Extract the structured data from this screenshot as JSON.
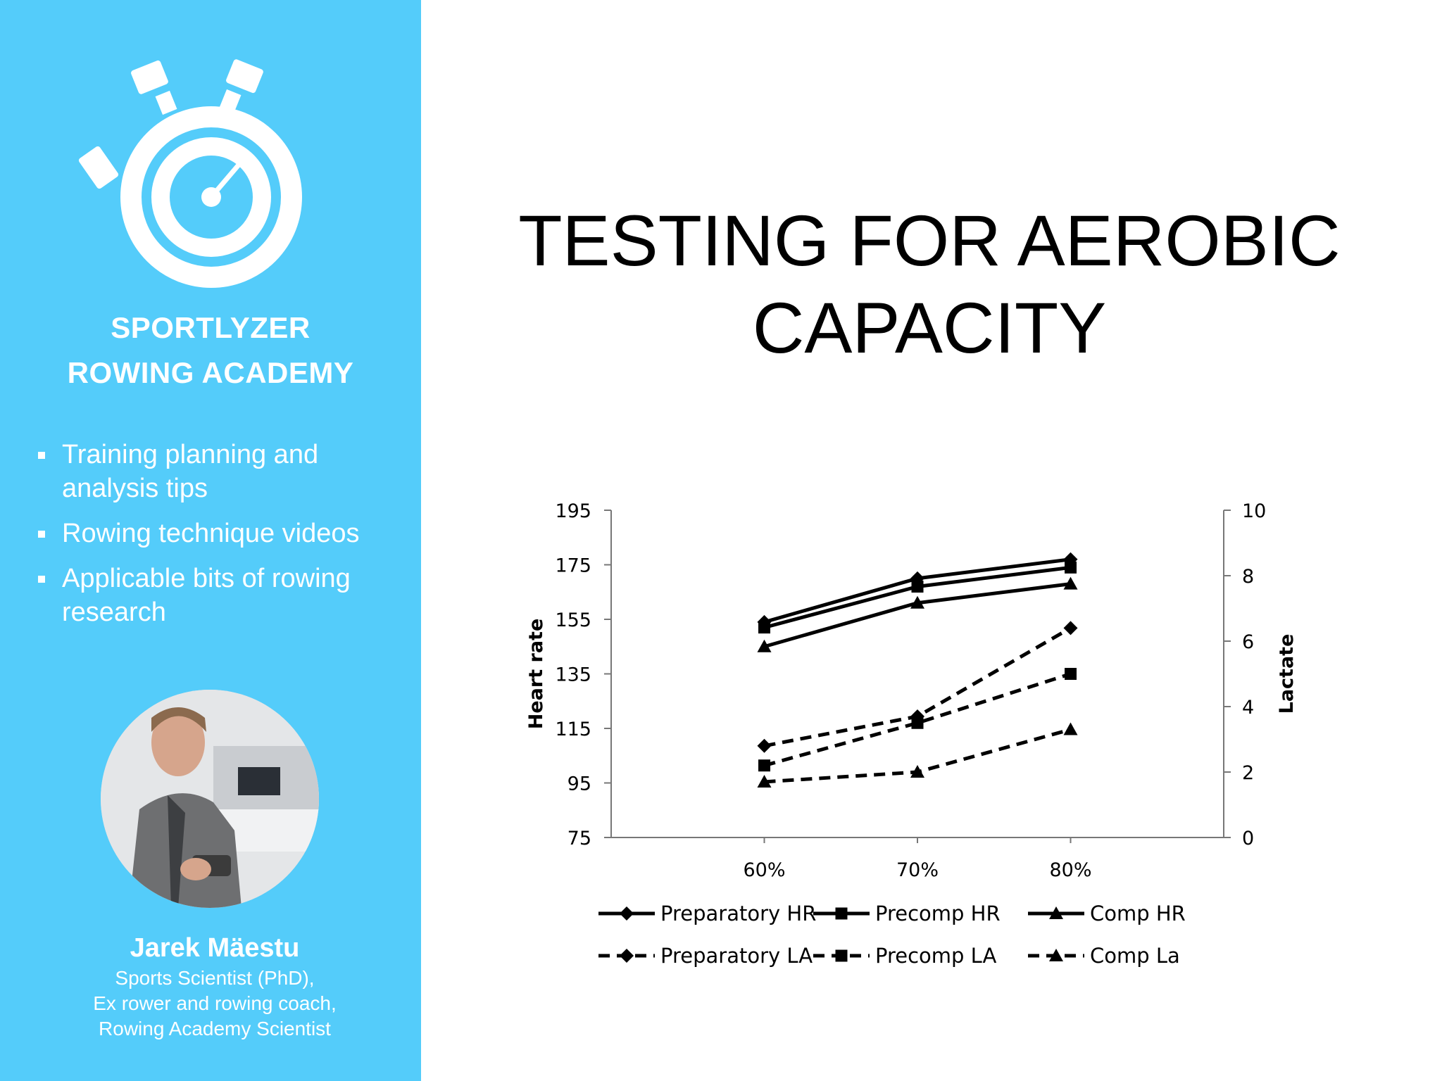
{
  "sidebar": {
    "brand_line1": "SPORTLYZER",
    "brand_line2": "ROWING ACADEMY",
    "bullets": [
      {
        "line1": "Training planning and",
        "line2": "analysis tips"
      },
      {
        "line1": "Rowing technique videos",
        "line2": ""
      },
      {
        "line1": "Applicable bits of rowing",
        "line2": "research"
      }
    ],
    "person": {
      "name": "Jarek Mäestu",
      "role1": "Sports Scientist (PhD),",
      "role2": "Ex rower and rowing coach,",
      "role3": "Rowing Academy Scientist"
    },
    "icons": {
      "logo": "stopwatch-icon",
      "bullet": "square-bullet-icon"
    }
  },
  "main": {
    "title_line1": "TESTING FOR AEROBIC",
    "title_line2": "CAPACITY"
  },
  "colors": {
    "sidebar_bg": "#54ccfa",
    "text_light": "#ffffff",
    "text_dark": "#000000",
    "series": "#000000"
  },
  "chart_data": {
    "type": "line",
    "categories": [
      "60%",
      "70%",
      "80%"
    ],
    "y_left": {
      "label": "Heart rate",
      "ticks": [
        75,
        95,
        115,
        135,
        155,
        175,
        195
      ],
      "ylim": [
        75,
        195
      ]
    },
    "y_right": {
      "label": "Lactate",
      "ticks": [
        0,
        2,
        4,
        6,
        8,
        10
      ],
      "ylim": [
        0,
        10
      ]
    },
    "grid": false,
    "legend_position": "bottom",
    "series": [
      {
        "name": "Preparatory HR",
        "axis": "left",
        "marker": "diamond",
        "dash": "solid",
        "values": [
          154,
          170,
          177
        ]
      },
      {
        "name": "Precomp HR",
        "axis": "left",
        "marker": "square",
        "dash": "solid",
        "values": [
          152,
          167,
          174
        ]
      },
      {
        "name": "Comp HR",
        "axis": "left",
        "marker": "triangle",
        "dash": "solid",
        "values": [
          145,
          161,
          168
        ]
      },
      {
        "name": "Preparatory LA",
        "axis": "right",
        "marker": "diamond",
        "dash": "dashed",
        "values": [
          2.8,
          3.7,
          6.4
        ]
      },
      {
        "name": "Precomp LA",
        "axis": "right",
        "marker": "square",
        "dash": "dashed",
        "values": [
          2.2,
          3.5,
          5.0
        ]
      },
      {
        "name": "Comp La",
        "axis": "right",
        "marker": "triangle",
        "dash": "dashed",
        "values": [
          1.7,
          2.0,
          3.3
        ]
      }
    ]
  }
}
